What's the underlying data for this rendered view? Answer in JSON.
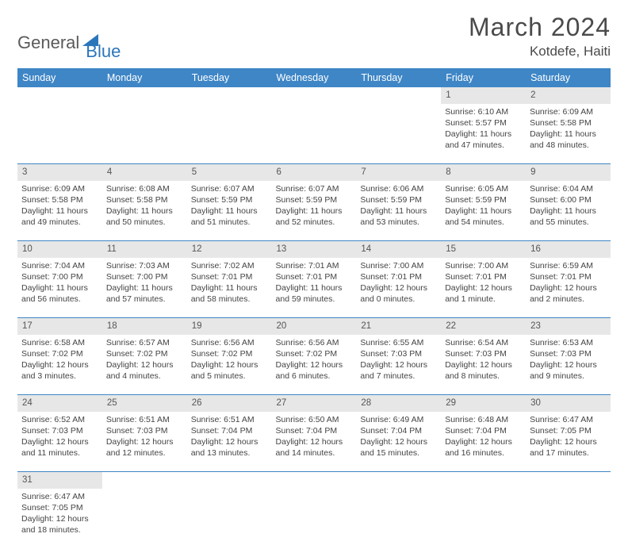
{
  "brand": {
    "part1": "General",
    "part2": "Blue",
    "accent": "#2b76bb"
  },
  "title": "March 2024",
  "location": "Kotdefe, Haiti",
  "dayHeaders": [
    "Sunday",
    "Monday",
    "Tuesday",
    "Wednesday",
    "Thursday",
    "Friday",
    "Saturday"
  ],
  "colors": {
    "headerBg": "#3e86c6",
    "headerText": "#ffffff",
    "dayNumBg": "#e7e7e7",
    "rowDivider": "#3e86c6",
    "bodyText": "#444444"
  },
  "weeks": [
    [
      null,
      null,
      null,
      null,
      null,
      {
        "n": "1",
        "sunrise": "6:10 AM",
        "sunset": "5:57 PM",
        "daylight": "11 hours and 47 minutes."
      },
      {
        "n": "2",
        "sunrise": "6:09 AM",
        "sunset": "5:58 PM",
        "daylight": "11 hours and 48 minutes."
      }
    ],
    [
      {
        "n": "3",
        "sunrise": "6:09 AM",
        "sunset": "5:58 PM",
        "daylight": "11 hours and 49 minutes."
      },
      {
        "n": "4",
        "sunrise": "6:08 AM",
        "sunset": "5:58 PM",
        "daylight": "11 hours and 50 minutes."
      },
      {
        "n": "5",
        "sunrise": "6:07 AM",
        "sunset": "5:59 PM",
        "daylight": "11 hours and 51 minutes."
      },
      {
        "n": "6",
        "sunrise": "6:07 AM",
        "sunset": "5:59 PM",
        "daylight": "11 hours and 52 minutes."
      },
      {
        "n": "7",
        "sunrise": "6:06 AM",
        "sunset": "5:59 PM",
        "daylight": "11 hours and 53 minutes."
      },
      {
        "n": "8",
        "sunrise": "6:05 AM",
        "sunset": "5:59 PM",
        "daylight": "11 hours and 54 minutes."
      },
      {
        "n": "9",
        "sunrise": "6:04 AM",
        "sunset": "6:00 PM",
        "daylight": "11 hours and 55 minutes."
      }
    ],
    [
      {
        "n": "10",
        "sunrise": "7:04 AM",
        "sunset": "7:00 PM",
        "daylight": "11 hours and 56 minutes."
      },
      {
        "n": "11",
        "sunrise": "7:03 AM",
        "sunset": "7:00 PM",
        "daylight": "11 hours and 57 minutes."
      },
      {
        "n": "12",
        "sunrise": "7:02 AM",
        "sunset": "7:01 PM",
        "daylight": "11 hours and 58 minutes."
      },
      {
        "n": "13",
        "sunrise": "7:01 AM",
        "sunset": "7:01 PM",
        "daylight": "11 hours and 59 minutes."
      },
      {
        "n": "14",
        "sunrise": "7:00 AM",
        "sunset": "7:01 PM",
        "daylight": "12 hours and 0 minutes."
      },
      {
        "n": "15",
        "sunrise": "7:00 AM",
        "sunset": "7:01 PM",
        "daylight": "12 hours and 1 minute."
      },
      {
        "n": "16",
        "sunrise": "6:59 AM",
        "sunset": "7:01 PM",
        "daylight": "12 hours and 2 minutes."
      }
    ],
    [
      {
        "n": "17",
        "sunrise": "6:58 AM",
        "sunset": "7:02 PM",
        "daylight": "12 hours and 3 minutes."
      },
      {
        "n": "18",
        "sunrise": "6:57 AM",
        "sunset": "7:02 PM",
        "daylight": "12 hours and 4 minutes."
      },
      {
        "n": "19",
        "sunrise": "6:56 AM",
        "sunset": "7:02 PM",
        "daylight": "12 hours and 5 minutes."
      },
      {
        "n": "20",
        "sunrise": "6:56 AM",
        "sunset": "7:02 PM",
        "daylight": "12 hours and 6 minutes."
      },
      {
        "n": "21",
        "sunrise": "6:55 AM",
        "sunset": "7:03 PM",
        "daylight": "12 hours and 7 minutes."
      },
      {
        "n": "22",
        "sunrise": "6:54 AM",
        "sunset": "7:03 PM",
        "daylight": "12 hours and 8 minutes."
      },
      {
        "n": "23",
        "sunrise": "6:53 AM",
        "sunset": "7:03 PM",
        "daylight": "12 hours and 9 minutes."
      }
    ],
    [
      {
        "n": "24",
        "sunrise": "6:52 AM",
        "sunset": "7:03 PM",
        "daylight": "12 hours and 11 minutes."
      },
      {
        "n": "25",
        "sunrise": "6:51 AM",
        "sunset": "7:03 PM",
        "daylight": "12 hours and 12 minutes."
      },
      {
        "n": "26",
        "sunrise": "6:51 AM",
        "sunset": "7:04 PM",
        "daylight": "12 hours and 13 minutes."
      },
      {
        "n": "27",
        "sunrise": "6:50 AM",
        "sunset": "7:04 PM",
        "daylight": "12 hours and 14 minutes."
      },
      {
        "n": "28",
        "sunrise": "6:49 AM",
        "sunset": "7:04 PM",
        "daylight": "12 hours and 15 minutes."
      },
      {
        "n": "29",
        "sunrise": "6:48 AM",
        "sunset": "7:04 PM",
        "daylight": "12 hours and 16 minutes."
      },
      {
        "n": "30",
        "sunrise": "6:47 AM",
        "sunset": "7:05 PM",
        "daylight": "12 hours and 17 minutes."
      }
    ],
    [
      {
        "n": "31",
        "sunrise": "6:47 AM",
        "sunset": "7:05 PM",
        "daylight": "12 hours and 18 minutes."
      },
      null,
      null,
      null,
      null,
      null,
      null
    ]
  ],
  "labels": {
    "sunrise": "Sunrise: ",
    "sunset": "Sunset: ",
    "daylight": "Daylight: "
  }
}
